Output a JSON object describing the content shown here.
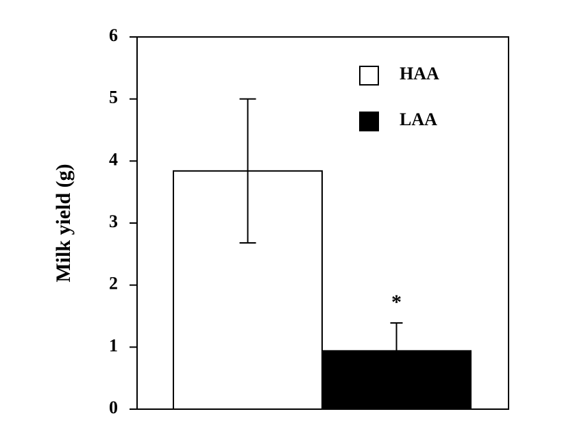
{
  "chart_data": {
    "type": "bar",
    "y_label": "Milk yield (g)",
    "categories": [
      null
    ],
    "series": [
      {
        "name": "HAA",
        "color": "#ffffff",
        "values": [
          3.84
        ],
        "errors": [
          1.16
        ],
        "error_bars": "both"
      },
      {
        "name": "LAA",
        "color": "#000000",
        "values": [
          0.94
        ],
        "errors": [
          0.45
        ],
        "error_bars": "up"
      }
    ],
    "annotations": [
      {
        "text": "*",
        "series": 1,
        "index": 0
      }
    ],
    "ylim": [
      0,
      6
    ],
    "yticks": [
      0,
      1,
      2,
      3,
      4,
      5,
      6
    ],
    "grid": false,
    "legend": "upper right"
  }
}
